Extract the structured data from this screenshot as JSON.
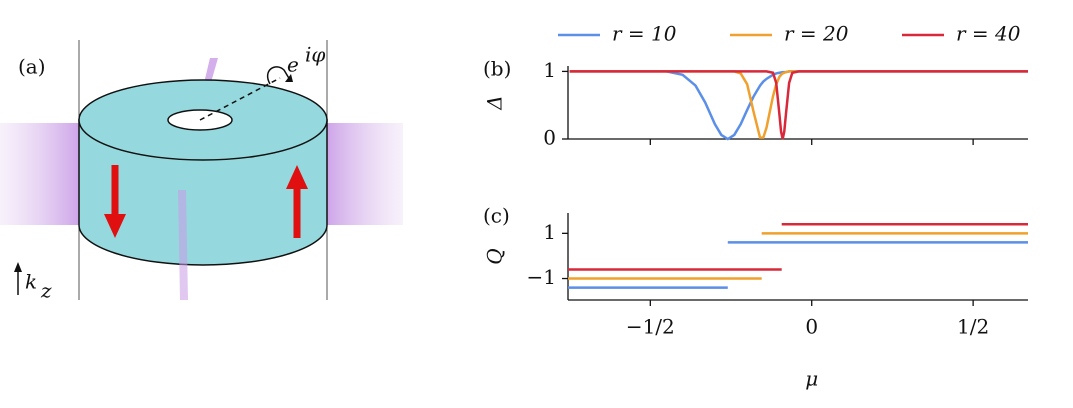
{
  "diagram": {
    "panel_label": "(a)",
    "phase_base": "e",
    "phase_exponent": "iφ",
    "axis_base": "k",
    "axis_subscript": "z"
  },
  "chart_data": [
    {
      "type": "line",
      "panel_label": "(b)",
      "ylabel": "Δ",
      "x": [
        -0.75,
        -0.6,
        -0.5,
        -0.45,
        -0.4,
        -0.36,
        -0.33,
        -0.3,
        -0.28,
        -0.26,
        -0.24,
        -0.22,
        -0.2,
        -0.18,
        -0.16,
        -0.15,
        -0.14,
        -0.12,
        -0.11,
        -0.1,
        -0.095,
        -0.09,
        -0.085,
        -0.08,
        -0.07,
        -0.06,
        -0.04,
        0,
        0.1,
        0.3,
        0.5,
        0.67
      ],
      "series": [
        {
          "name": "r = 10",
          "color": "#5b8fe8",
          "values": [
            1,
            1,
            1,
            1,
            0.95,
            0.79,
            0.54,
            0.22,
            0.06,
            0,
            0.06,
            0.22,
            0.43,
            0.63,
            0.79,
            0.85,
            0.89,
            0.95,
            0.97,
            0.98,
            0.985,
            0.99,
            0.99,
            0.99,
            1,
            1,
            1,
            1,
            1,
            1,
            1,
            1
          ]
        },
        {
          "name": "r = 20",
          "color": "#f0a02c",
          "values": [
            1,
            1,
            1,
            1,
            1,
            1,
            1,
            1,
            1,
            1,
            1,
            0.97,
            0.81,
            0.4,
            0.02,
            0.02,
            0.17,
            0.63,
            0.81,
            0.92,
            0.95,
            0.97,
            0.98,
            0.99,
            1,
            1,
            1,
            1,
            1,
            1,
            1,
            1
          ]
        },
        {
          "name": "r = 40",
          "color": "#d8283a",
          "values": [
            1,
            1,
            1,
            1,
            1,
            1,
            1,
            1,
            1,
            1,
            1,
            1,
            1,
            1,
            1,
            1,
            1,
            0.98,
            0.83,
            0.36,
            0.11,
            0,
            0.11,
            0.36,
            0.83,
            0.98,
            1,
            1,
            1,
            1,
            1,
            1
          ]
        }
      ],
      "xlim": [
        -0.755,
        0.67
      ],
      "xticks": [
        -0.5,
        0,
        0.5
      ],
      "ylim": [
        0,
        1.08
      ],
      "yticks": [
        0,
        1
      ]
    },
    {
      "type": "line",
      "panel_label": "(c)",
      "ylabel": "Q",
      "xlabel": "μ",
      "series": [
        {
          "name": "r = 10",
          "color": "#5b8fe8",
          "x": [
            -0.755,
            -0.26,
            -0.26,
            -0.26,
            0.67
          ],
          "values": [
            -1.4,
            -1.4,
            null,
            0.6,
            0.6
          ]
        },
        {
          "name": "r = 20",
          "color": "#f0a02c",
          "x": [
            -0.755,
            -0.155,
            -0.155,
            -0.155,
            0.67
          ],
          "values": [
            -1,
            -1,
            null,
            1,
            1
          ]
        },
        {
          "name": "r = 40",
          "color": "#d8283a",
          "x": [
            -0.755,
            -0.093,
            -0.093,
            -0.093,
            0.67
          ],
          "values": [
            -0.6,
            -0.6,
            null,
            1.4,
            1.4
          ]
        }
      ],
      "xlim": [
        -0.755,
        0.67
      ],
      "xticks": [
        {
          "value": -0.5,
          "label": "−1/2"
        },
        0,
        {
          "value": 0.5,
          "label": "1/2"
        }
      ],
      "ylim": [
        -1.95,
        1.9
      ],
      "yticks": [
        {
          "value": -1,
          "label": "−1"
        },
        1
      ]
    }
  ]
}
